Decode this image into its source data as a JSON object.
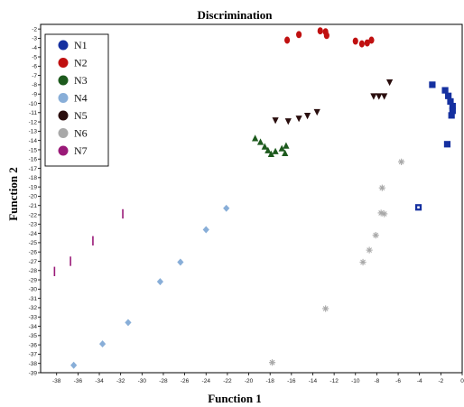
{
  "chart_data": {
    "type": "scatter",
    "title": "Discrimination",
    "xlabel": "Function 1",
    "ylabel": "Function 2",
    "xlim": [
      -39.5,
      0
    ],
    "ylim": [
      -39,
      -1.5
    ],
    "x_ticks": [
      -38,
      -36,
      -34,
      -32,
      -30,
      -28,
      -26,
      -24,
      -22,
      -20,
      -18,
      -16,
      -14,
      -12,
      -10,
      -8,
      -6,
      -4,
      -2,
      0
    ],
    "y_ticks": [
      -2,
      -3,
      -4,
      -5,
      -6,
      -7,
      -8,
      -9,
      -10,
      -11,
      -12,
      -13,
      -14,
      -15,
      -16,
      -17,
      -18,
      -19,
      -20,
      -21,
      -22,
      -23,
      -24,
      -25,
      -26,
      -27,
      -28,
      -29,
      -30,
      -31,
      -32,
      -33,
      -34,
      -35,
      -36,
      -37,
      -38,
      -39
    ],
    "legend_position": "top-left",
    "grid": false,
    "series": [
      {
        "name": "N1",
        "marker": "square",
        "color": "#1530a0",
        "points": [
          [
            -2.8,
            -8
          ],
          [
            -1.6,
            -8.6
          ],
          [
            -1.3,
            -9.2
          ],
          [
            -1.1,
            -9.8
          ],
          [
            -0.9,
            -10.3
          ],
          [
            -0.9,
            -10.8
          ],
          [
            -1.0,
            -11.3
          ],
          [
            -1.4,
            -14.4
          ],
          [
            -4.1,
            -21.2
          ]
        ]
      },
      {
        "name": "N2",
        "marker": "circle",
        "color": "#c01010",
        "points": [
          [
            -16.4,
            -3.2
          ],
          [
            -15.3,
            -2.6
          ],
          [
            -13.3,
            -2.2
          ],
          [
            -12.8,
            -2.3
          ],
          [
            -12.7,
            -2.7
          ],
          [
            -10,
            -3.3
          ],
          [
            -9.4,
            -3.6
          ],
          [
            -8.9,
            -3.5
          ],
          [
            -8.5,
            -3.2
          ]
        ]
      },
      {
        "name": "N3",
        "marker": "triangle-up",
        "color": "#1d5a1d",
        "points": [
          [
            -19.4,
            -13.8
          ],
          [
            -18.9,
            -14.2
          ],
          [
            -18.5,
            -14.7
          ],
          [
            -18.2,
            -15.1
          ],
          [
            -17.9,
            -15.5
          ],
          [
            -17.5,
            -15.2
          ],
          [
            -16.9,
            -14.9
          ],
          [
            -16.6,
            -15.4
          ],
          [
            -16.5,
            -14.6
          ]
        ]
      },
      {
        "name": "N4",
        "marker": "diamond",
        "color": "#88aed8",
        "points": [
          [
            -36.4,
            -38.2
          ],
          [
            -33.7,
            -35.9
          ],
          [
            -31.3,
            -33.6
          ],
          [
            -28.3,
            -29.2
          ],
          [
            -26.4,
            -27.1
          ],
          [
            -24,
            -23.6
          ],
          [
            -22.1,
            -21.3
          ]
        ]
      },
      {
        "name": "N5",
        "marker": "triangle-down",
        "color": "#2a0e0e",
        "points": [
          [
            -17.5,
            -11.8
          ],
          [
            -16.3,
            -11.9
          ],
          [
            -15.3,
            -11.6
          ],
          [
            -14.5,
            -11.3
          ],
          [
            -13.6,
            -10.9
          ],
          [
            -8.3,
            -9.2
          ],
          [
            -7.8,
            -9.2
          ],
          [
            -7.3,
            -9.2
          ],
          [
            -6.8,
            -7.7
          ]
        ]
      },
      {
        "name": "N6",
        "marker": "asterisk",
        "color": "#a8a8a8",
        "points": [
          [
            -5.7,
            -16.3
          ],
          [
            -7.5,
            -19.1
          ],
          [
            -7.6,
            -21.8
          ],
          [
            -7.3,
            -21.9
          ],
          [
            -8.1,
            -24.2
          ],
          [
            -8.7,
            -25.8
          ],
          [
            -9.3,
            -27.1
          ],
          [
            -12.8,
            -32.1
          ],
          [
            -17.8,
            -37.9
          ]
        ]
      },
      {
        "name": "N7",
        "marker": "bar",
        "color": "#9a1a78",
        "points": [
          [
            -31.8,
            -21.9
          ],
          [
            -34.6,
            -24.8
          ],
          [
            -36.7,
            -27
          ],
          [
            -38.2,
            -28.1
          ]
        ]
      }
    ]
  }
}
